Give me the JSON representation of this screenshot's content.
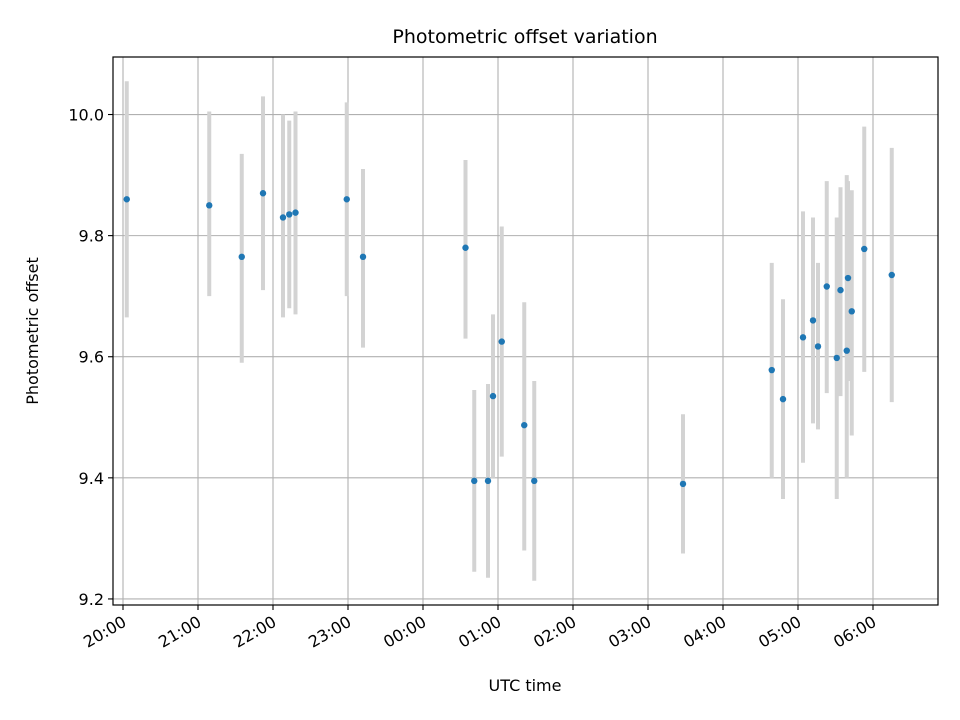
{
  "chart_data": {
    "type": "scatter",
    "title": "Photometric offset variation",
    "xlabel": "UTC time",
    "ylabel": "Photometric offset",
    "x_axis_type": "time",
    "xlim": [
      "19:52",
      "06:52"
    ],
    "ylim": [
      9.19,
      10.095
    ],
    "x_ticks": [
      "20:00",
      "21:00",
      "22:00",
      "23:00",
      "00:00",
      "01:00",
      "02:00",
      "03:00",
      "04:00",
      "05:00",
      "06:00"
    ],
    "y_ticks": [
      "9.2",
      "9.4",
      "9.6",
      "9.8",
      "10.0"
    ],
    "grid": true,
    "point_color": "#1f77b4",
    "errorbar_color": "#d3d3d3",
    "points": [
      {
        "time": "20:03",
        "y": 9.86,
        "ylow": 9.665,
        "yhigh": 10.055
      },
      {
        "time": "21:09",
        "y": 9.85,
        "ylow": 9.7,
        "yhigh": 10.005
      },
      {
        "time": "21:35",
        "y": 9.765,
        "ylow": 9.59,
        "yhigh": 9.935
      },
      {
        "time": "21:52",
        "y": 9.87,
        "ylow": 9.71,
        "yhigh": 10.03
      },
      {
        "time": "22:08",
        "y": 9.83,
        "ylow": 9.665,
        "yhigh": 10.0
      },
      {
        "time": "22:13",
        "y": 9.835,
        "ylow": 9.68,
        "yhigh": 9.99
      },
      {
        "time": "22:18",
        "y": 9.838,
        "ylow": 9.67,
        "yhigh": 10.005
      },
      {
        "time": "22:59",
        "y": 9.86,
        "ylow": 9.7,
        "yhigh": 10.02
      },
      {
        "time": "23:12",
        "y": 9.765,
        "ylow": 9.615,
        "yhigh": 9.91
      },
      {
        "time": "00:34",
        "y": 9.78,
        "ylow": 9.63,
        "yhigh": 9.925
      },
      {
        "time": "00:41",
        "y": 9.395,
        "ylow": 9.245,
        "yhigh": 9.545
      },
      {
        "time": "00:52",
        "y": 9.395,
        "ylow": 9.235,
        "yhigh": 9.555
      },
      {
        "time": "00:56",
        "y": 9.535,
        "ylow": 9.4,
        "yhigh": 9.67
      },
      {
        "time": "01:03",
        "y": 9.625,
        "ylow": 9.435,
        "yhigh": 9.815
      },
      {
        "time": "01:21",
        "y": 9.487,
        "ylow": 9.28,
        "yhigh": 9.69
      },
      {
        "time": "01:29",
        "y": 9.395,
        "ylow": 9.23,
        "yhigh": 9.56
      },
      {
        "time": "03:28",
        "y": 9.39,
        "ylow": 9.275,
        "yhigh": 9.505
      },
      {
        "time": "04:39",
        "y": 9.578,
        "ylow": 9.4,
        "yhigh": 9.755
      },
      {
        "time": "04:48",
        "y": 9.53,
        "ylow": 9.365,
        "yhigh": 9.695
      },
      {
        "time": "05:04",
        "y": 9.632,
        "ylow": 9.425,
        "yhigh": 9.84
      },
      {
        "time": "05:12",
        "y": 9.66,
        "ylow": 9.49,
        "yhigh": 9.83
      },
      {
        "time": "05:16",
        "y": 9.617,
        "ylow": 9.48,
        "yhigh": 9.755
      },
      {
        "time": "05:23",
        "y": 9.716,
        "ylow": 9.54,
        "yhigh": 9.89
      },
      {
        "time": "05:31",
        "y": 9.598,
        "ylow": 9.365,
        "yhigh": 9.83
      },
      {
        "time": "05:34",
        "y": 9.71,
        "ylow": 9.535,
        "yhigh": 9.88
      },
      {
        "time": "05:39",
        "y": 9.61,
        "ylow": 9.4,
        "yhigh": 9.9
      },
      {
        "time": "05:40",
        "y": 9.73,
        "ylow": 9.56,
        "yhigh": 9.89
      },
      {
        "time": "05:43",
        "y": 9.675,
        "ylow": 9.47,
        "yhigh": 9.875
      },
      {
        "time": "05:53",
        "y": 9.778,
        "ylow": 9.575,
        "yhigh": 9.98
      },
      {
        "time": "06:15",
        "y": 9.735,
        "ylow": 9.525,
        "yhigh": 9.945
      }
    ]
  }
}
